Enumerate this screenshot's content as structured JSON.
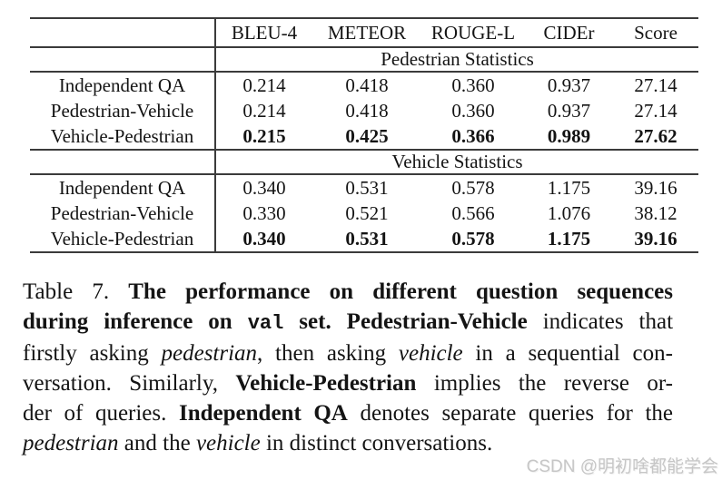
{
  "table": {
    "columns": [
      "BLEU-4",
      "METEOR",
      "ROUGE-L",
      "CIDEr",
      "Score"
    ],
    "sections": [
      {
        "title": "Pedestrian Statistics",
        "rows": [
          {
            "label": "Independent QA",
            "values": [
              "0.214",
              "0.418",
              "0.360",
              "0.937",
              "27.14"
            ],
            "bold": false
          },
          {
            "label": "Pedestrian-Vehicle",
            "values": [
              "0.214",
              "0.418",
              "0.360",
              "0.937",
              "27.14"
            ],
            "bold": false
          },
          {
            "label": "Vehicle-Pedestrian",
            "values": [
              "0.215",
              "0.425",
              "0.366",
              "0.989",
              "27.62"
            ],
            "bold": true
          }
        ]
      },
      {
        "title": "Vehicle Statistics",
        "rows": [
          {
            "label": "Independent QA",
            "values": [
              "0.340",
              "0.531",
              "0.578",
              "1.175",
              "39.16"
            ],
            "bold": false
          },
          {
            "label": "Pedestrian-Vehicle",
            "values": [
              "0.330",
              "0.521",
              "0.566",
              "1.076",
              "38.12"
            ],
            "bold": false
          },
          {
            "label": "Vehicle-Pedestrian",
            "values": [
              "0.340",
              "0.531",
              "0.578",
              "1.175",
              "39.16"
            ],
            "bold": true
          }
        ]
      }
    ]
  },
  "caption": {
    "lines": [
      [
        {
          "t": "Table 7. "
        },
        {
          "t": "The performance on different question sequences",
          "f": "b"
        }
      ],
      [
        {
          "t": "during inference on ",
          "f": "b"
        },
        {
          "t": "val",
          "f": "bm"
        },
        {
          "t": " set. ",
          "f": "b"
        },
        {
          "t": "Pedestrian-Vehicle",
          "f": "b"
        },
        {
          "t": " indicates that"
        }
      ],
      [
        {
          "t": "firstly asking "
        },
        {
          "t": "pedestrian",
          "f": "i"
        },
        {
          "t": ", then asking "
        },
        {
          "t": "vehicle",
          "f": "i"
        },
        {
          "t": " in a sequential con-"
        }
      ],
      [
        {
          "t": "versation. Similarly, "
        },
        {
          "t": "Vehicle-Pedestrian",
          "f": "b"
        },
        {
          "t": " implies the reverse or-"
        }
      ],
      [
        {
          "t": "der of queries. "
        },
        {
          "t": "Independent QA",
          "f": "b"
        },
        {
          "t": " denotes separate queries for the"
        }
      ],
      [
        {
          "t": "pedestrian",
          "f": "i"
        },
        {
          "t": " and the "
        },
        {
          "t": "vehicle",
          "f": "i"
        },
        {
          "t": " in distinct conversations."
        }
      ]
    ]
  },
  "watermark": {
    "text": "CSDN @明初啥都能学会",
    "color": "#c6c6c6"
  }
}
